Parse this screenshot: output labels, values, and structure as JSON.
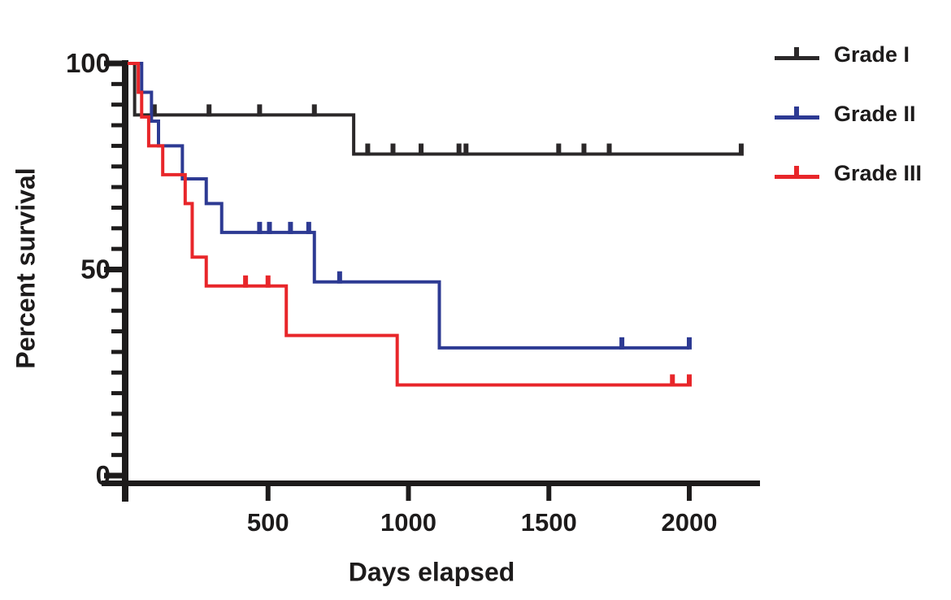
{
  "chart_data": {
    "type": "line",
    "subtype": "kaplan-meier-step-survival",
    "title": "",
    "xlabel": "Days elapsed",
    "ylabel": "Percent survival",
    "xlim": [
      0,
      2250
    ],
    "ylim": [
      0,
      100
    ],
    "x_ticks": [
      500,
      1000,
      1500,
      2000
    ],
    "y_ticks": [
      0,
      50,
      100
    ],
    "y_minor_tick_step": 5,
    "grid": false,
    "legend_position": "top-right",
    "axis_color": "#1d1b1b",
    "background_color": "#ffffff",
    "series": [
      {
        "name": "Grade I",
        "color": "#2b2829",
        "steps": [
          [
            0,
            100
          ],
          [
            25,
            87.5
          ],
          [
            805,
            78
          ]
        ],
        "end_day": 2185,
        "censor_days": [
          95,
          290,
          470,
          665,
          855,
          945,
          1045,
          1180,
          1205,
          1535,
          1625,
          1715,
          2185
        ]
      },
      {
        "name": "Grade II",
        "color": "#2d3a93",
        "steps": [
          [
            0,
            100
          ],
          [
            50,
            93
          ],
          [
            85,
            86
          ],
          [
            110,
            80
          ],
          [
            195,
            72
          ],
          [
            280,
            66
          ],
          [
            335,
            59
          ],
          [
            665,
            47
          ],
          [
            1110,
            31
          ]
        ],
        "end_day": 2000,
        "censor_days": [
          470,
          505,
          580,
          645,
          755,
          1760,
          2000
        ]
      },
      {
        "name": "Grade III",
        "color": "#e8262a",
        "steps": [
          [
            0,
            100
          ],
          [
            38,
            93
          ],
          [
            50,
            87
          ],
          [
            75,
            80
          ],
          [
            125,
            73
          ],
          [
            205,
            66
          ],
          [
            230,
            53
          ],
          [
            280,
            46
          ],
          [
            565,
            34
          ],
          [
            960,
            22
          ]
        ],
        "end_day": 2000,
        "censor_days": [
          420,
          500,
          1940,
          2000
        ]
      }
    ]
  }
}
